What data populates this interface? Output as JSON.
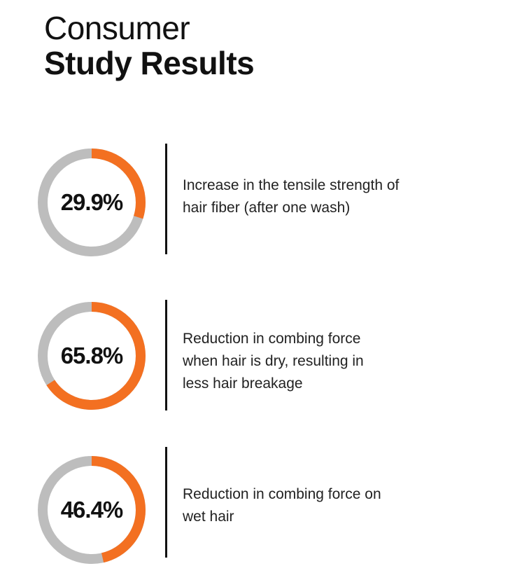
{
  "header": {
    "title_line1": "Consumer",
    "title_line2": "Study Results"
  },
  "colors": {
    "accent": "#f37021",
    "track": "#bdbdbd",
    "text": "#111111"
  },
  "chart_data": {
    "type": "donut",
    "items": [
      {
        "value": 29.9,
        "value_label": "29.9%",
        "description": "Increase in the tensile strength of hair fiber (after one wash)"
      },
      {
        "value": 65.8,
        "value_label": "65.8%",
        "description": "Reduction in combing force when hair is dry, resulting in less hair breakage"
      },
      {
        "value": 46.4,
        "value_label": "46.4%",
        "description": "Reduction in combing force on wet hair"
      }
    ]
  },
  "stats": [
    {
      "value_label": "29.9%",
      "line1": "Increase in the tensile strength of",
      "line2": "hair fiber (after one wash)",
      "line3": ""
    },
    {
      "value_label": "65.8%",
      "line1": "Reduction in combing force",
      "line2": "when hair is dry, resulting in",
      "line3": "less hair breakage"
    },
    {
      "value_label": "46.4%",
      "line1": "Reduction in combing force on",
      "line2": "wet hair",
      "line3": ""
    }
  ]
}
